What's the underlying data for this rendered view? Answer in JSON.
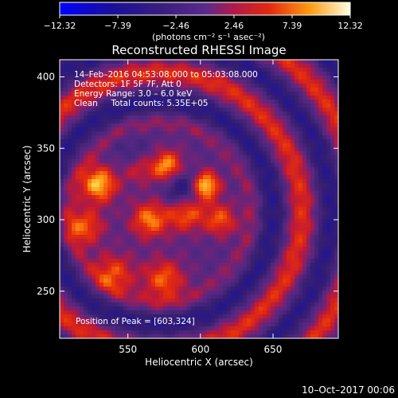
{
  "chart_data": {
    "type": "heatmap",
    "title": "Reconstructed RHESSI Image",
    "xlabel": "Heliocentric X (arcsec)",
    "ylabel": "Heliocentric Y (arcsec)",
    "xlim": [
      503,
      695
    ],
    "ylim": [
      217,
      412
    ],
    "x_ticks": [
      550,
      600,
      650
    ],
    "y_ticks": [
      250,
      300,
      350,
      400
    ],
    "colorbar": {
      "unit_label": "(photons cm⁻² s⁻¹ asec⁻²)",
      "range": [
        -12.32,
        12.32
      ],
      "tick_values": [
        -12.32,
        -7.39,
        -2.46,
        2.46,
        7.39,
        12.32
      ],
      "tick_labels": [
        "−12.32",
        "−7.39",
        "−2.46",
        "2.46",
        "7.39",
        "12.32"
      ]
    },
    "annotations": [
      "14–Feb–2016 04:53:08.000 to 05:03:08.000",
      "Detectors: 1F 5F 7F, Att 0",
      "Energy Range: 3.0 – 6.0 keV",
      "Clean     Total counts: 5.35E+05"
    ],
    "peak_label": "Position of Peak = [603,324]",
    "peak": {
      "x": 603,
      "y": 324
    },
    "sources": [
      {
        "x": 530,
        "y": 325,
        "amp": 10.5,
        "sigma": 9
      },
      {
        "x": 556,
        "y": 337,
        "amp": 10.5,
        "sigma": 8
      },
      {
        "x": 577,
        "y": 337,
        "amp": 10.0,
        "sigma": 8
      },
      {
        "x": 603,
        "y": 324,
        "amp": 12.3,
        "sigma": 7
      },
      {
        "x": 565,
        "y": 300,
        "amp": 8.5,
        "sigma": 9
      },
      {
        "x": 590,
        "y": 305,
        "amp": 8.0,
        "sigma": 9
      },
      {
        "x": 614,
        "y": 300,
        "amp": 7.0,
        "sigma": 8
      },
      {
        "x": 520,
        "y": 295,
        "amp": 7.5,
        "sigma": 9
      },
      {
        "x": 540,
        "y": 262,
        "amp": 7.0,
        "sigma": 10
      },
      {
        "x": 575,
        "y": 258,
        "amp": 7.5,
        "sigma": 10
      },
      {
        "x": 555,
        "y": 340,
        "amp": -8,
        "sigma": 9
      },
      {
        "x": 588,
        "y": 322,
        "amp": -8,
        "sigma": 9
      }
    ],
    "ring_center": {
      "x": 572,
      "y": 305
    },
    "ring_period": 40,
    "ring_amplitude": 5.5
  },
  "footer": {
    "date_stamp": "10–Oct–2017 00:06"
  },
  "colors": {
    "background": "#000000",
    "text": "#ffffff"
  }
}
